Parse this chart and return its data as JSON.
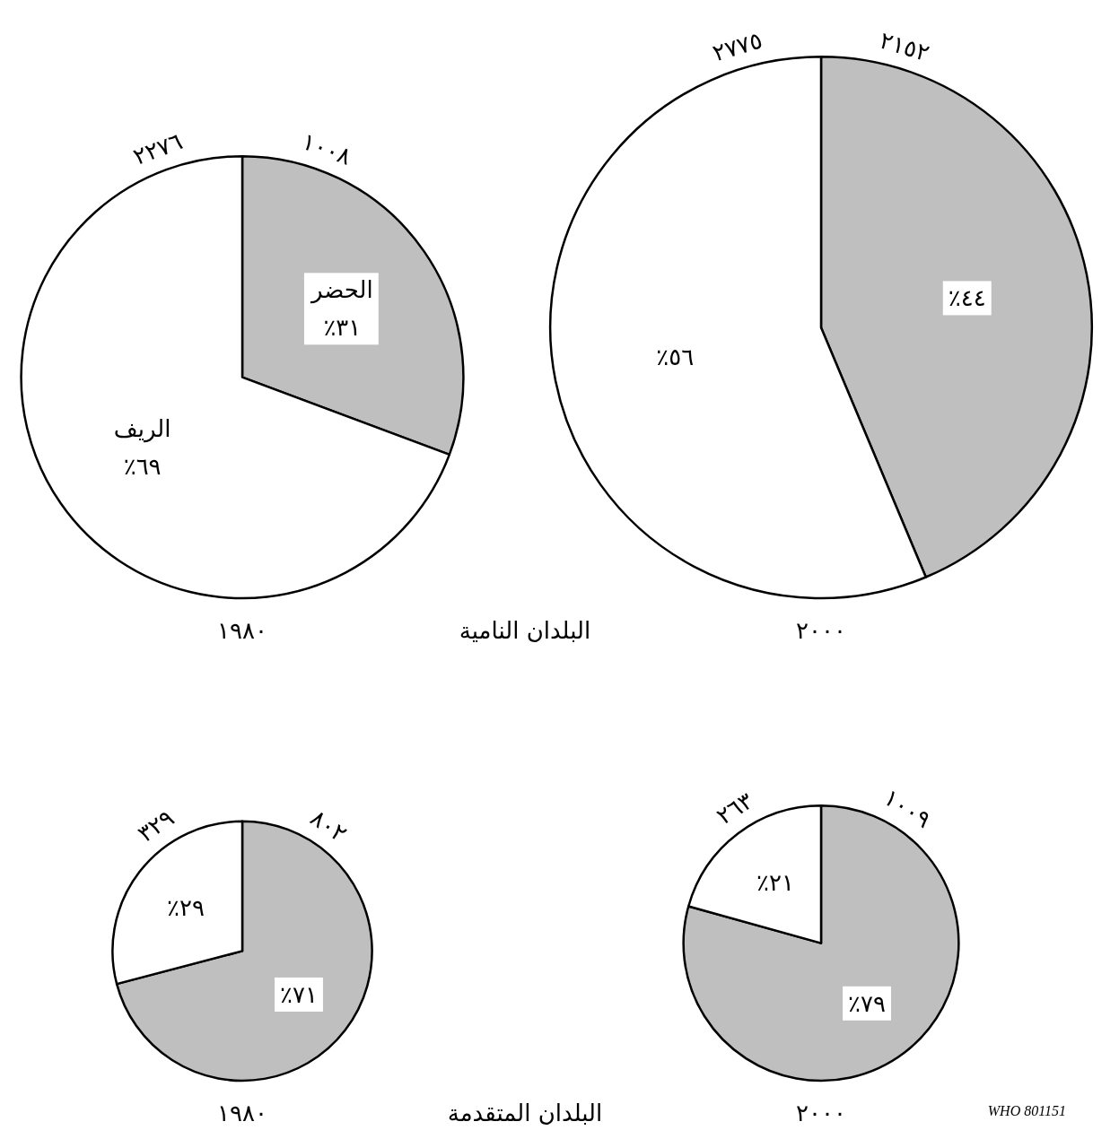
{
  "chart_data": [
    {
      "type": "pie",
      "title": "١٩٨٠",
      "subtitle": "البلدان النامية",
      "categories": [
        "الحضر",
        "الريف"
      ],
      "values": [
        1008,
        2276
      ],
      "colors": [
        "#bfbfbf",
        "#ffffff"
      ],
      "value_labels": [
        "١٠٠٨",
        "٢٢٧٦"
      ],
      "annotations": [
        "٪٣١",
        "٪٦٩"
      ]
    },
    {
      "type": "pie",
      "title": "٢٠٠٠",
      "categories": [
        null,
        null
      ],
      "values": [
        2152,
        2775
      ],
      "colors": [
        "#bfbfbf",
        "#ffffff"
      ],
      "value_labels": [
        "٢١٥٢",
        "٢٧٧٥"
      ],
      "annotations": [
        "٪٤٤",
        "٪٥٦"
      ]
    },
    {
      "type": "pie",
      "title": "١٩٨٠",
      "subtitle": "البلدان المتقدمة",
      "categories": [
        null,
        null
      ],
      "values": [
        802,
        329
      ],
      "colors": [
        "#bfbfbf",
        "#ffffff"
      ],
      "value_labels": [
        "٨٠٢",
        "٣٢٩"
      ],
      "annotations": [
        "٪٧١",
        "٪٢٩"
      ]
    },
    {
      "type": "pie",
      "title": "٢٠٠٠",
      "categories": [
        null,
        null
      ],
      "values": [
        1009,
        263
      ],
      "colors": [
        "#bfbfbf",
        "#ffffff"
      ],
      "value_labels": [
        "١٠٠٩",
        "٢٦٣"
      ],
      "annotations": [
        "٪٧٩",
        "٪٢١",
        "WHO 801151"
      ]
    }
  ]
}
